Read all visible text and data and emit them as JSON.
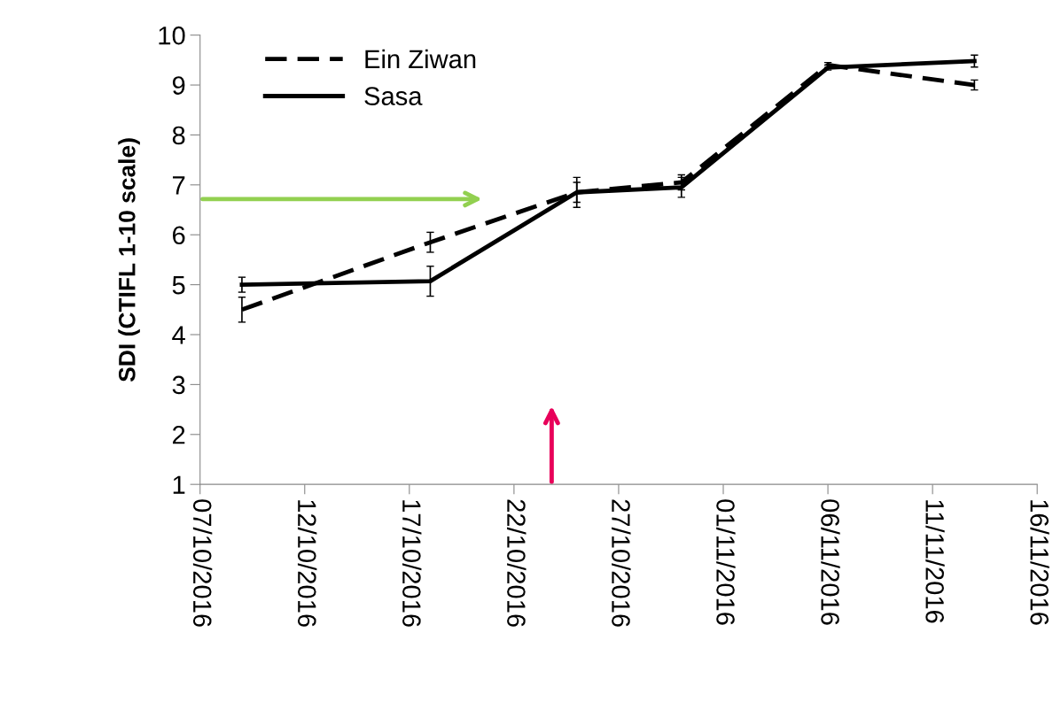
{
  "chart_data": {
    "type": "line",
    "ylabel": "SDI (CTIFL 1-10 scale)",
    "x": [
      "2016-10-09",
      "2016-10-18",
      "2016-10-25",
      "2016-10-30",
      "2016-11-06",
      "2016-11-13"
    ],
    "series": [
      {
        "name": "Ein Ziwan",
        "color": "#000000",
        "line_style": "dashed",
        "values": [
          4.5,
          5.85,
          6.85,
          7.05,
          9.4,
          9.0
        ],
        "errors": [
          0.25,
          0.2,
          0.2,
          0.15,
          0.05,
          0.1
        ]
      },
      {
        "name": "Sasa",
        "color": "#000000",
        "line_style": "solid",
        "values": [
          5.0,
          5.07,
          6.85,
          6.95,
          9.35,
          9.48
        ],
        "errors": [
          0.15,
          0.3,
          0.3,
          0.2,
          0.05,
          0.12
        ]
      }
    ],
    "xlim": [
      "2016-10-07",
      "2016-11-16"
    ],
    "xticks": [
      {
        "value": "2016-10-07",
        "label": "07/10/2016"
      },
      {
        "value": "2016-10-12",
        "label": "12/10/2016"
      },
      {
        "value": "2016-10-17",
        "label": "17/10/2016"
      },
      {
        "value": "2016-10-22",
        "label": "22/10/2016"
      },
      {
        "value": "2016-10-27",
        "label": "27/10/2016"
      },
      {
        "value": "2016-11-01",
        "label": "01/11/2016"
      },
      {
        "value": "2016-11-06",
        "label": "06/11/2016"
      },
      {
        "value": "2016-11-11",
        "label": "11/11/2016"
      },
      {
        "value": "2016-11-16",
        "label": "16/11/2016"
      }
    ],
    "ylim": [
      1,
      10
    ],
    "yticks": [
      1,
      2,
      3,
      4,
      5,
      6,
      7,
      8,
      9,
      10
    ],
    "grid": false,
    "legend": "top left",
    "marker": "none"
  }
}
